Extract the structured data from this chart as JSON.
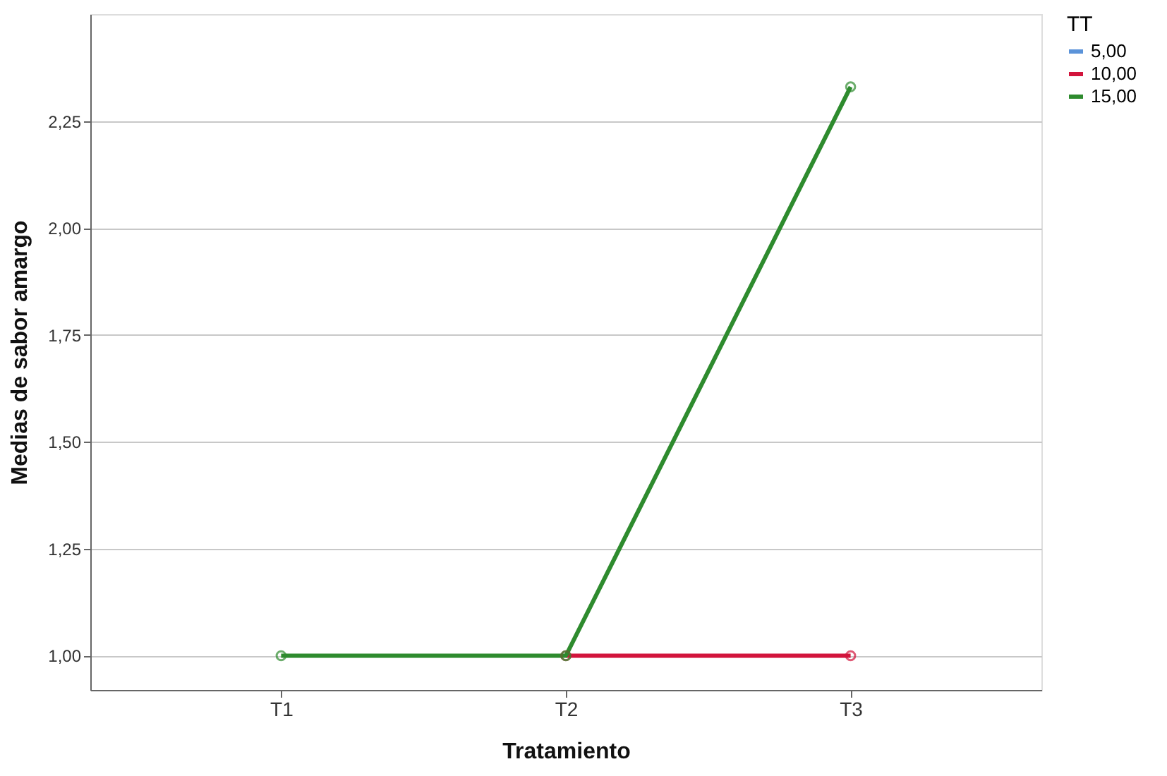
{
  "chart_data": {
    "type": "line",
    "xlabel": "Tratamiento",
    "ylabel": "Medias de sabor amargo",
    "legend_title": "TT",
    "categories": [
      "T1",
      "T2",
      "T3"
    ],
    "series": [
      {
        "name": "5,00",
        "color": "#5b93d9",
        "values": [
          null,
          null,
          null
        ]
      },
      {
        "name": "10,00",
        "color": "#d2143c",
        "values": [
          null,
          1.0,
          1.0
        ]
      },
      {
        "name": "15,00",
        "color": "#2e8b2e",
        "values": [
          1.0,
          1.0,
          2.33
        ]
      }
    ],
    "ylim": [
      0.92,
      2.5
    ],
    "yticks": [
      {
        "value": 1.0,
        "label": "1,00"
      },
      {
        "value": 1.25,
        "label": "1,25"
      },
      {
        "value": 1.5,
        "label": "1,50"
      },
      {
        "value": 1.75,
        "label": "1,75"
      },
      {
        "value": 2.0,
        "label": "2,00"
      },
      {
        "value": 2.25,
        "label": "2,25"
      }
    ],
    "grid": "y",
    "legend": "top right",
    "marker": "circle",
    "line_style": "solid"
  }
}
